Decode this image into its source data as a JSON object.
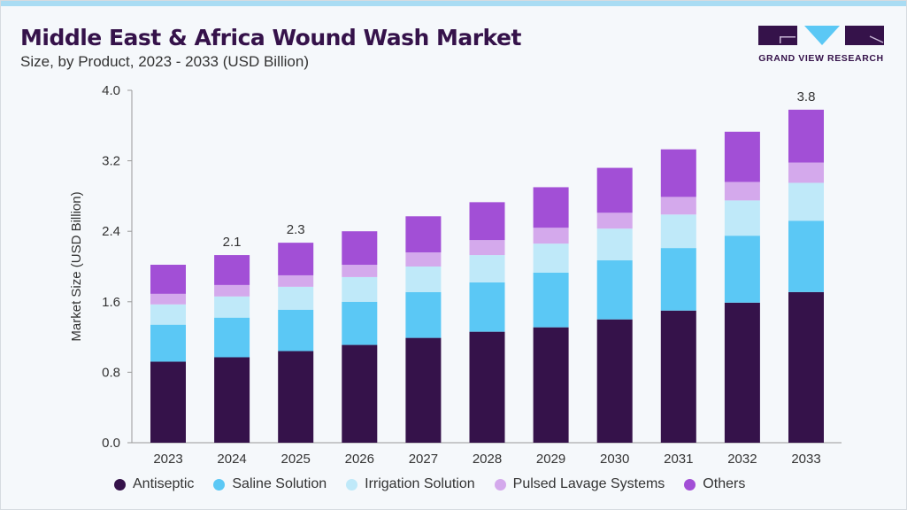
{
  "title": "Middle East & Africa Wound Wash Market",
  "subtitle": "Size, by Product, 2023 - 2033 (USD Billion)",
  "logo_text": "GRAND VIEW RESEARCH",
  "chart_data": {
    "type": "bar",
    "stacked": true,
    "ylabel": "Market Size (USD Billion)",
    "ylim": [
      0,
      4.0
    ],
    "yticks": [
      "0.0",
      "0.8",
      "1.6",
      "2.4",
      "3.2",
      "4.0"
    ],
    "grid": false,
    "legend_position": "bottom",
    "categories": [
      "2023",
      "2024",
      "2025",
      "2026",
      "2027",
      "2028",
      "2029",
      "2030",
      "2031",
      "2032",
      "2033"
    ],
    "series": [
      {
        "name": "Antiseptic",
        "color": "#35124a",
        "values": [
          0.92,
          0.97,
          1.04,
          1.11,
          1.19,
          1.26,
          1.31,
          1.4,
          1.5,
          1.59,
          1.71
        ]
      },
      {
        "name": "Saline Solution",
        "color": "#5bc8f5",
        "values": [
          0.42,
          0.45,
          0.47,
          0.49,
          0.52,
          0.56,
          0.62,
          0.67,
          0.71,
          0.76,
          0.81
        ]
      },
      {
        "name": "Irrigation Solution",
        "color": "#bfe9f9",
        "values": [
          0.23,
          0.24,
          0.26,
          0.28,
          0.29,
          0.31,
          0.33,
          0.36,
          0.38,
          0.4,
          0.43
        ]
      },
      {
        "name": "Pulsed Lavage Systems",
        "color": "#d4a9ec",
        "values": [
          0.12,
          0.13,
          0.13,
          0.14,
          0.16,
          0.17,
          0.18,
          0.18,
          0.2,
          0.21,
          0.23
        ]
      },
      {
        "name": "Others",
        "color": "#a24fd6",
        "values": [
          0.33,
          0.34,
          0.37,
          0.38,
          0.41,
          0.43,
          0.46,
          0.51,
          0.54,
          0.57,
          0.6
        ]
      }
    ],
    "data_labels": [
      {
        "category": "2024",
        "label": "2.1"
      },
      {
        "category": "2025",
        "label": "2.3"
      },
      {
        "category": "2033",
        "label": "3.8"
      }
    ]
  }
}
